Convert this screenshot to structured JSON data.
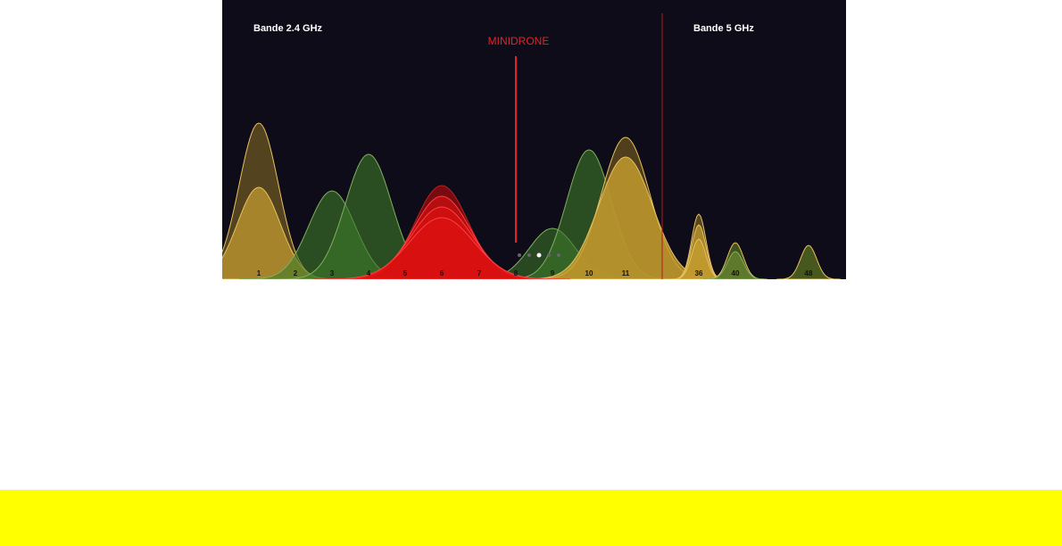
{
  "image": {
    "band_24": "Bande 2.4 GHz",
    "band_5": "Bande 5 GHz",
    "marker": "MINIDRONE",
    "channels": [
      "1",
      "2",
      "3",
      "4",
      "5",
      "6",
      "7",
      "8",
      "9",
      "10",
      "11",
      "36",
      "40",
      "48"
    ]
  }
}
